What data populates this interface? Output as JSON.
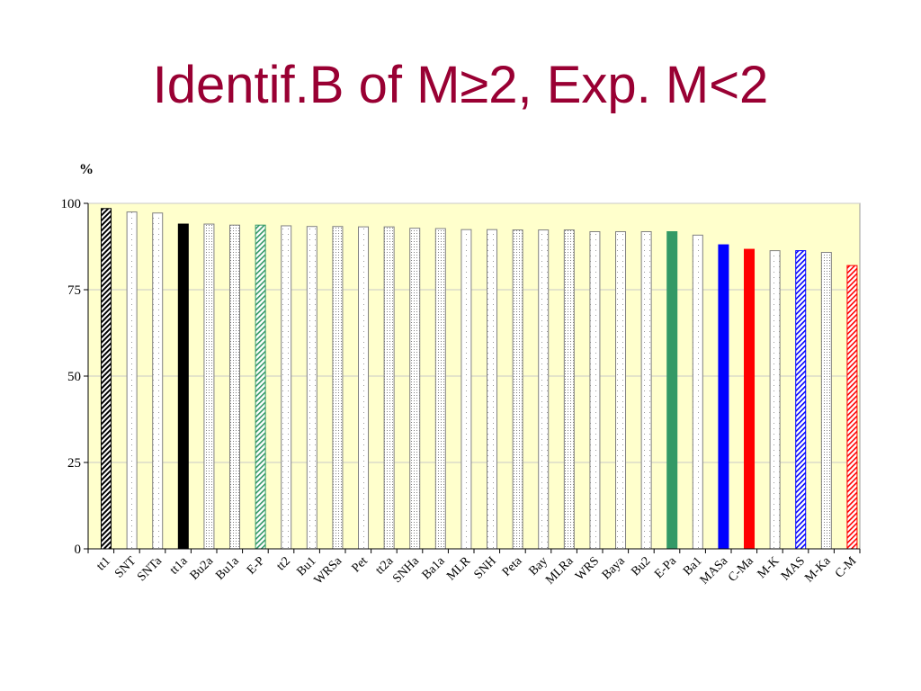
{
  "slide": {
    "title": "Identif.B of M≥2, Exp. M<2"
  },
  "chart_data": {
    "type": "bar",
    "ylabel": "%",
    "ylim": [
      0,
      100
    ],
    "yticks": [
      0,
      25,
      50,
      75,
      100
    ],
    "grid": true,
    "legend": "none",
    "categories": [
      "tt1",
      "SNT",
      "SNTa",
      "tt1a",
      "Bu2a",
      "Bu1a",
      "E-P",
      "tt2",
      "Bu1",
      "WRSa",
      "Pet",
      "tt2a",
      "SNHa",
      "Ba1a",
      "MLR",
      "SNH",
      "Peta",
      "Bay",
      "MLRa",
      "WRS",
      "Baya",
      "Bu2",
      "E-Pa",
      "Ba1",
      "MASa",
      "C-Ma",
      "M-K",
      "MAS",
      "M-Ka",
      "C-M"
    ],
    "values": [
      98.5,
      97.5,
      97.2,
      94.0,
      94.0,
      93.7,
      93.7,
      93.5,
      93.3,
      93.3,
      93.2,
      93.2,
      92.8,
      92.7,
      92.4,
      92.4,
      92.3,
      92.3,
      92.3,
      91.8,
      91.8,
      91.8,
      91.8,
      90.8,
      88.0,
      86.7,
      86.3,
      86.3,
      85.8,
      82.0
    ],
    "styles": [
      "black-hatch",
      "white-dots",
      "white-dots",
      "black-solid",
      "gray-dots",
      "gray-dots",
      "green-hatch",
      "white-dots",
      "white-dots",
      "gray-dots",
      "white-dots",
      "gray-dots",
      "gray-dots",
      "gray-dots",
      "white-dots",
      "white-dots",
      "gray-dots",
      "white-dots",
      "gray-dots",
      "white-dots",
      "white-dots",
      "white-dots",
      "green-solid",
      "white-dots",
      "blue-solid",
      "red-solid",
      "white-dots",
      "blue-hatch",
      "gray-dots",
      "red-hatch"
    ],
    "colors": {
      "plot_background": "#ffffcc",
      "title": "#990033",
      "black": "#000000",
      "green": "#339966",
      "blue": "#0000ff",
      "red": "#ff0000",
      "outline": "#808080",
      "grid": "#c8c8c8"
    }
  }
}
